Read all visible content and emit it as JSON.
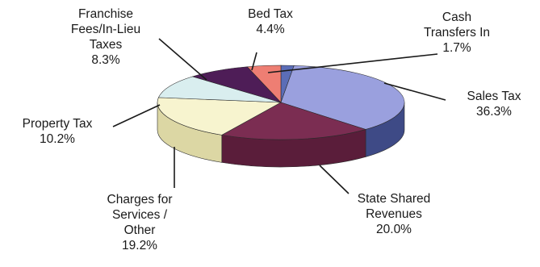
{
  "chart_data": {
    "type": "pie",
    "style": "3d-exploded-none",
    "slices": [
      {
        "name": "Cash Transfers In",
        "name_lines": [
          "Cash",
          "Transfers In"
        ],
        "value": 1.7,
        "label": "1.7%",
        "top_color": "#5b6db7",
        "side_color": "#3f4f8d"
      },
      {
        "name": "Sales Tax",
        "name_lines": [
          "Sales Tax"
        ],
        "value": 36.3,
        "label": "36.3%",
        "top_color": "#9aa0de",
        "side_color": "#3e4a86"
      },
      {
        "name": "State Shared Revenues",
        "name_lines": [
          "State Shared",
          "Revenues"
        ],
        "value": 20.0,
        "label": "20.0%",
        "top_color": "#7b2d52",
        "side_color": "#5a1d3a"
      },
      {
        "name": "Charges for Services / Other",
        "name_lines": [
          "Charges for",
          "Services /",
          "Other"
        ],
        "value": 19.2,
        "label": "19.2%",
        "top_color": "#f7f4cf",
        "side_color": "#dcd7a4"
      },
      {
        "name": "Property Tax",
        "name_lines": [
          "Property Tax"
        ],
        "value": 10.2,
        "label": "10.2%",
        "top_color": "#d9eeef",
        "side_color": "#b5d2d4"
      },
      {
        "name": "Franchise Fees/In-Lieu Taxes",
        "name_lines": [
          "Franchise",
          "Fees/In-Lieu",
          "Taxes"
        ],
        "value": 8.3,
        "label": "8.3%",
        "top_color": "#4e1d57",
        "side_color": "#35123c"
      },
      {
        "name": "Bed Tax",
        "name_lines": [
          "Bed Tax"
        ],
        "value": 4.4,
        "label": "4.4%",
        "top_color": "#ee7e73",
        "side_color": "#c45d53"
      }
    ]
  }
}
